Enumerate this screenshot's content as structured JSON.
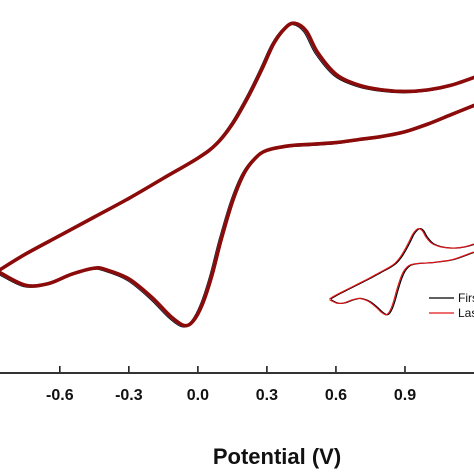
{
  "chart_data": {
    "type": "line",
    "xlabel": "Potential (V)",
    "ylabel": "",
    "xlim": [
      -0.86,
      1.2
    ],
    "ylim": [
      -1.4,
      1.0
    ],
    "x_ticks": [
      {
        "value": -0.6,
        "label": "-0.6"
      },
      {
        "value": -0.3,
        "label": "-0.3"
      },
      {
        "value": 0.0,
        "label": "0.0"
      },
      {
        "value": 0.3,
        "label": "0.3"
      },
      {
        "value": 0.6,
        "label": "0.6"
      },
      {
        "value": 0.9,
        "label": "0.9"
      }
    ],
    "series_colors": [
      "#000000",
      "#4f81bd",
      "#7fb0a0",
      "#c9a020",
      "#c0504d",
      "#8b0a0a"
    ],
    "main_curve": {
      "forward": [
        [
          -0.86,
          -0.74
        ],
        [
          -0.75,
          -0.64
        ],
        [
          -0.6,
          -0.52
        ],
        [
          -0.45,
          -0.4
        ],
        [
          -0.3,
          -0.28
        ],
        [
          -0.15,
          -0.15
        ],
        [
          0.0,
          -0.02
        ],
        [
          0.08,
          0.07
        ],
        [
          0.15,
          0.2
        ],
        [
          0.22,
          0.38
        ],
        [
          0.28,
          0.56
        ],
        [
          0.33,
          0.72
        ],
        [
          0.38,
          0.82
        ],
        [
          0.42,
          0.85
        ],
        [
          0.47,
          0.8
        ],
        [
          0.52,
          0.66
        ],
        [
          0.6,
          0.52
        ],
        [
          0.7,
          0.45
        ],
        [
          0.8,
          0.42
        ],
        [
          0.9,
          0.41
        ],
        [
          1.0,
          0.42
        ],
        [
          1.1,
          0.45
        ],
        [
          1.2,
          0.5
        ]
      ],
      "reverse": [
        [
          1.2,
          0.32
        ],
        [
          1.1,
          0.26
        ],
        [
          1.0,
          0.2
        ],
        [
          0.9,
          0.15
        ],
        [
          0.8,
          0.12
        ],
        [
          0.7,
          0.1
        ],
        [
          0.6,
          0.08
        ],
        [
          0.5,
          0.07
        ],
        [
          0.4,
          0.06
        ],
        [
          0.3,
          0.03
        ],
        [
          0.25,
          -0.02
        ],
        [
          0.2,
          -0.12
        ],
        [
          0.15,
          -0.3
        ],
        [
          0.1,
          -0.55
        ],
        [
          0.06,
          -0.78
        ],
        [
          0.02,
          -0.96
        ],
        [
          -0.02,
          -1.07
        ],
        [
          -0.06,
          -1.1
        ],
        [
          -0.12,
          -1.04
        ],
        [
          -0.2,
          -0.92
        ],
        [
          -0.3,
          -0.8
        ],
        [
          -0.4,
          -0.74
        ],
        [
          -0.45,
          -0.73
        ],
        [
          -0.55,
          -0.77
        ],
        [
          -0.65,
          -0.83
        ],
        [
          -0.75,
          -0.84
        ],
        [
          -0.86,
          -0.76
        ]
      ]
    },
    "inset": {
      "xlim": [
        -0.86,
        1.2
      ],
      "ylim": [
        -1.4,
        1.0
      ],
      "series": [
        {
          "name": "First",
          "color": "#000000"
        },
        {
          "name": "Last",
          "color": "#e0161b"
        }
      ]
    }
  }
}
